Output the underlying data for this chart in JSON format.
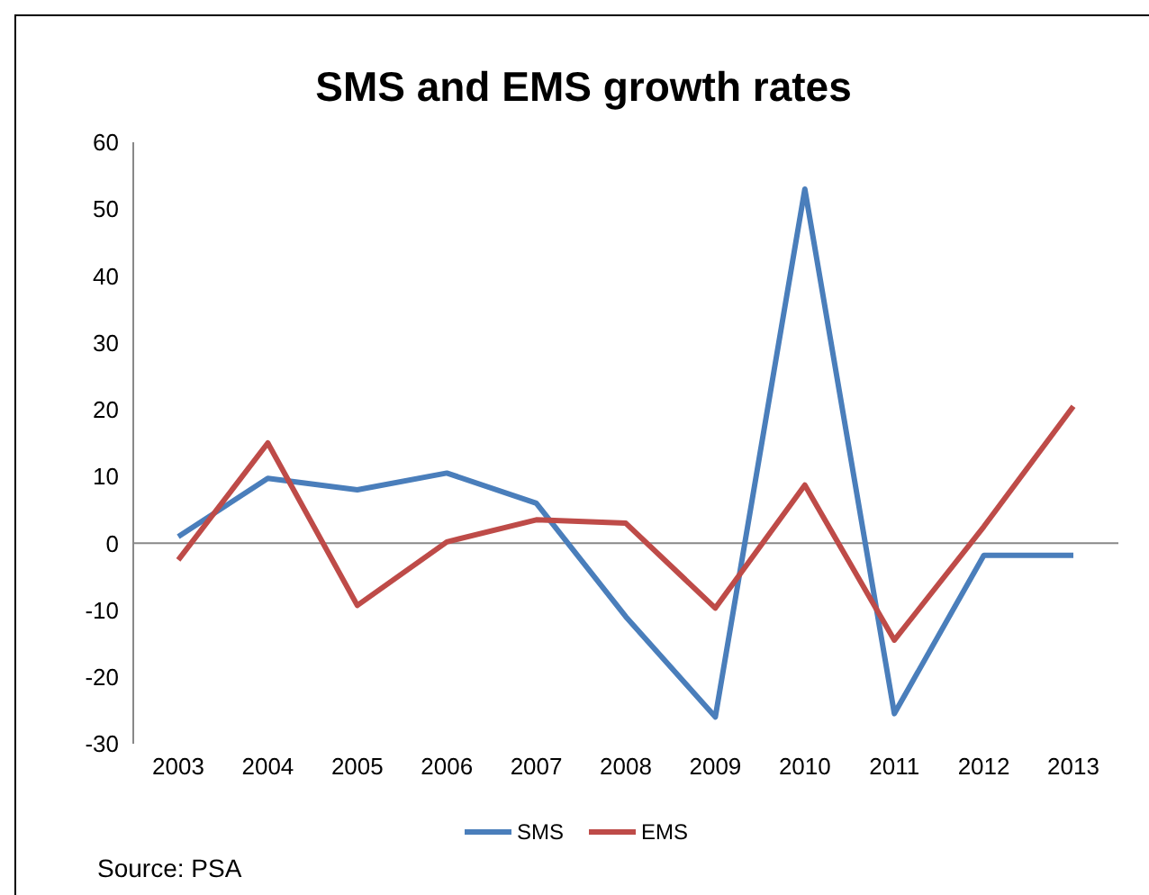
{
  "chart_data": {
    "type": "line",
    "title": "SMS and EMS growth rates",
    "categories": [
      "2003",
      "2004",
      "2005",
      "2006",
      "2007",
      "2008",
      "2009",
      "2010",
      "2011",
      "2012",
      "2013"
    ],
    "series": [
      {
        "name": "SMS",
        "color": "#4a7ebb",
        "values": [
          1,
          9.7,
          8,
          10.5,
          6,
          -11,
          -26,
          53,
          -25.5,
          -1.8,
          -1.8
        ]
      },
      {
        "name": "EMS",
        "color": "#be4b48",
        "values": [
          -2.5,
          15,
          -9.3,
          0.2,
          3.5,
          3,
          -9.7,
          8.7,
          -14.5,
          2.5,
          20.5
        ]
      }
    ],
    "ylim": [
      -30,
      60
    ],
    "yticks": [
      -30,
      -20,
      -10,
      0,
      10,
      20,
      30,
      40,
      50,
      60
    ],
    "grid": false,
    "legend": "bottom",
    "marker": "none",
    "line_style": "solid",
    "ref_lines": [
      {
        "axis": "y",
        "value": 0,
        "color": "#888888"
      }
    ],
    "annotations": [
      "Source: PSA"
    ]
  }
}
